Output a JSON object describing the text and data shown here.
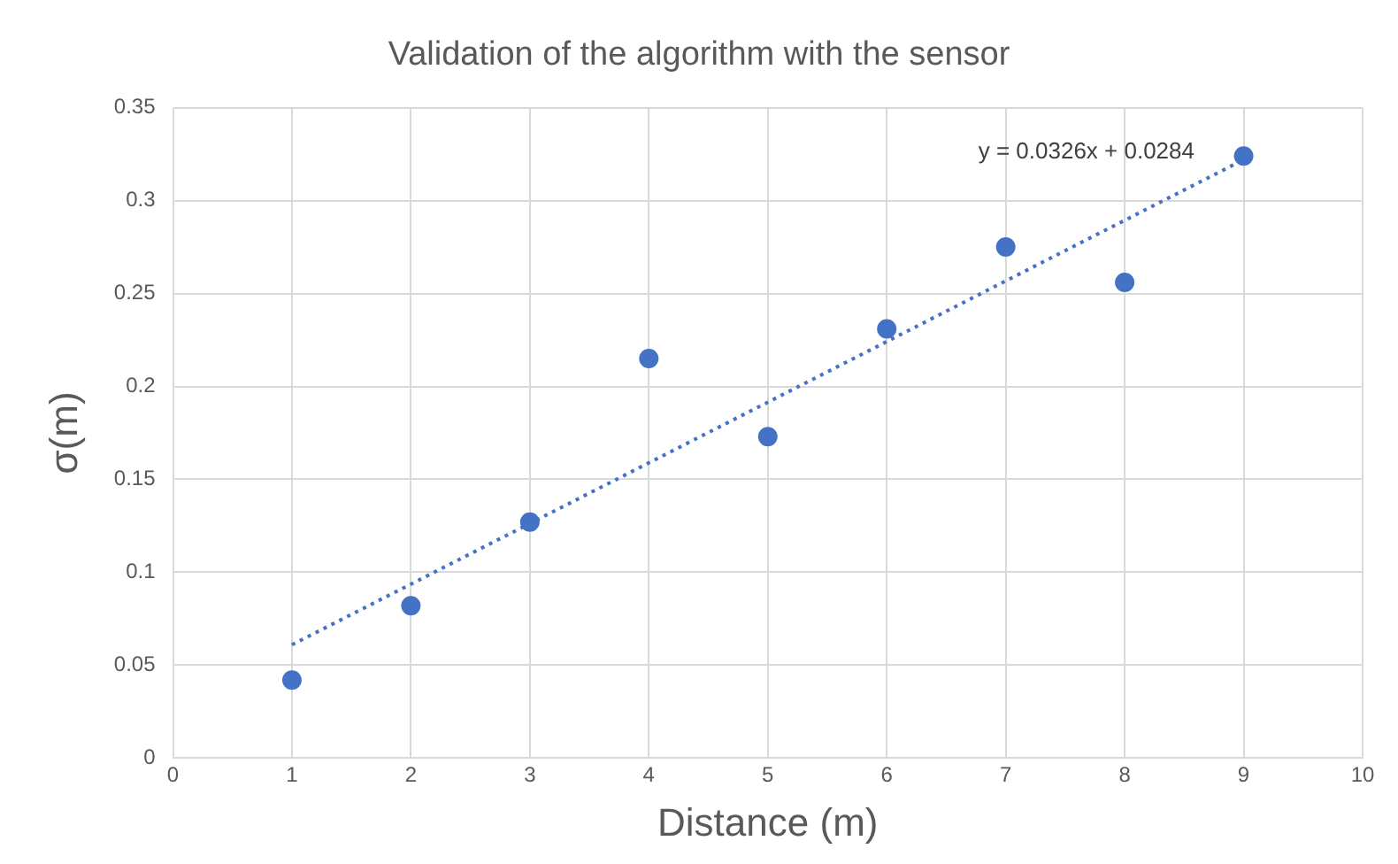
{
  "chart_data": {
    "type": "scatter",
    "title": "Validation of the algorithm with the sensor",
    "xlabel": "Distance (m)",
    "ylabel": "σ(m)",
    "x": [
      1,
      2,
      3,
      4,
      5,
      6,
      7,
      8,
      9
    ],
    "series": [
      {
        "type": "scatter",
        "color": "#4472c4",
        "marker": "circle",
        "values": [
          0.042,
          0.082,
          0.127,
          0.215,
          0.173,
          0.231,
          0.275,
          0.256,
          0.324
        ]
      },
      {
        "type": "line",
        "color": "#4472c4",
        "marker": "none",
        "line_style": "dotted",
        "x": [
          1,
          9
        ],
        "values": [
          0.061,
          0.322
        ]
      }
    ],
    "annotations": [
      "y = 0.0326x + 0.0284"
    ],
    "xlim": [
      0,
      10
    ],
    "xticks": [
      0,
      1,
      2,
      3,
      4,
      5,
      6,
      7,
      8,
      9,
      10
    ],
    "ylim": [
      0,
      0.35
    ],
    "yticks": [
      0,
      0.05,
      0.1,
      0.15,
      0.2,
      0.25,
      0.3,
      0.35
    ],
    "grid": true,
    "legend": false
  }
}
